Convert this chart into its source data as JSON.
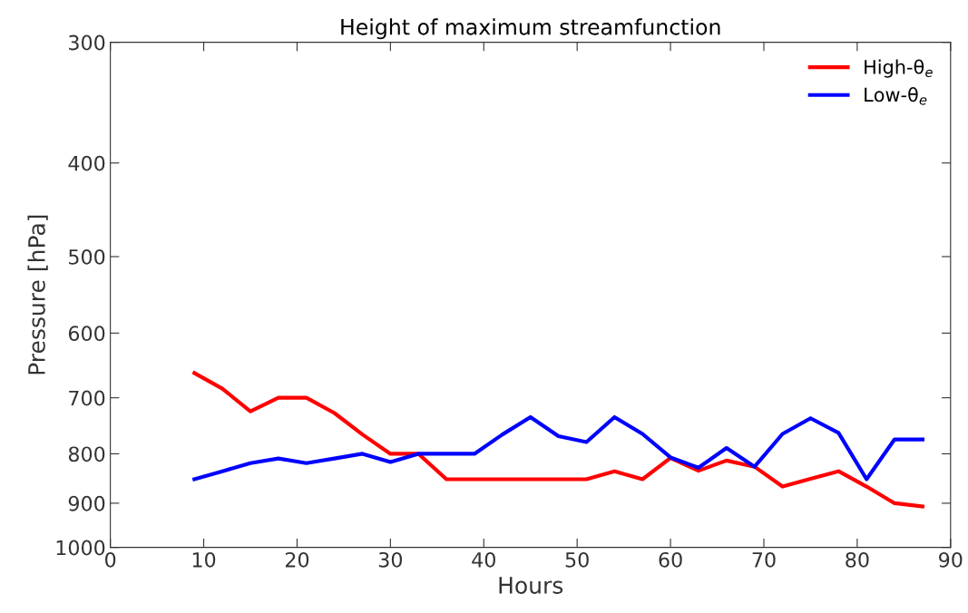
{
  "chart_data": {
    "type": "line",
    "title": "Height of maximum streamfunction",
    "xlabel": "Hours",
    "ylabel": "Pressure [hPa]",
    "x": [
      9,
      12,
      15,
      18,
      21,
      24,
      27,
      30,
      33,
      36,
      39,
      42,
      45,
      48,
      51,
      54,
      57,
      60,
      63,
      66,
      69,
      72,
      75,
      78,
      81,
      84,
      87
    ],
    "series": [
      {
        "name": "High-θ$_{e}$",
        "color": "#ff0000",
        "values": [
          660,
          685,
          723,
          700,
          700,
          726,
          764,
          800,
          800,
          850,
          850,
          850,
          850,
          850,
          850,
          834,
          850,
          808,
          833,
          813,
          825,
          865,
          849,
          834,
          865,
          900,
          907
        ]
      },
      {
        "name": "Low-θ$_{e}$",
        "color": "#0000ff",
        "values": [
          850,
          834,
          818,
          809,
          818,
          809,
          800,
          816,
          800,
          800,
          800,
          764,
          733,
          767,
          778,
          733,
          763,
          807,
          827,
          789,
          825,
          763,
          735,
          761,
          850,
          773,
          773
        ]
      }
    ],
    "log": "y",
    "xlim": [
      0,
      90
    ],
    "xticks": [
      0,
      10,
      20,
      30,
      40,
      50,
      60,
      70,
      80,
      90
    ],
    "ylim": [
      1000,
      300
    ],
    "yticks": [
      300,
      400,
      500,
      600,
      700,
      800,
      900,
      1000
    ],
    "legend": "top right",
    "grid": false
  }
}
